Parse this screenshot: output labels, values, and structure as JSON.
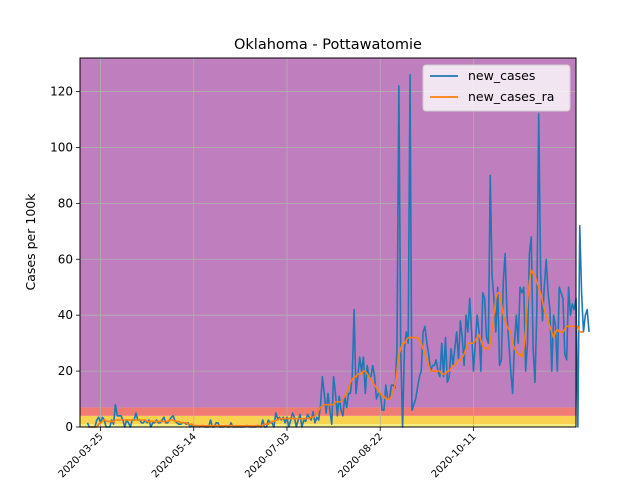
{
  "chart_data": {
    "type": "line",
    "title": "Oklahoma - Pottawatomie",
    "xlabel": "",
    "ylabel": "Cases per 100k",
    "x_start": "2020-03-18",
    "x_end": "2020-11-29",
    "xlim": [
      "2020-03-14",
      "2020-12-05"
    ],
    "ylim": [
      0,
      132
    ],
    "yticks": [
      0,
      20,
      40,
      60,
      80,
      100,
      120
    ],
    "xticks": [
      "2020-03-25",
      "2020-05-14",
      "2020-07-03",
      "2020-08-22",
      "2020-10-11"
    ],
    "grid": true,
    "legend": {
      "placement": "top-right",
      "entries": [
        "new_cases",
        "new_cases_ra"
      ]
    },
    "bands": [
      {
        "from": 0,
        "to": 1,
        "color": "#f5f07f"
      },
      {
        "from": 1,
        "to": 4,
        "color": "#f9d24f"
      },
      {
        "from": 4,
        "to": 7,
        "color": "#f07a74"
      },
      {
        "from": 7,
        "to": 132,
        "color": "#bf7fbf"
      }
    ],
    "series": [
      {
        "name": "new_cases",
        "color": "#1f77b4",
        "values": [
          1.5,
          0,
          0,
          0,
          0,
          2.5,
          3.5,
          1.5,
          3.5,
          2.5,
          0,
          0,
          0,
          2.5,
          1,
          8,
          4,
          4,
          4,
          2.5,
          0,
          2.5,
          1.5,
          0,
          2.5,
          2.5,
          5,
          2.5,
          2.5,
          1.5,
          1.5,
          2.5,
          1.5,
          2.5,
          0,
          1.5,
          1.5,
          2.5,
          1.5,
          1.5,
          2.5,
          3.5,
          1.5,
          1.5,
          2.5,
          3.5,
          4,
          2,
          1.5,
          1,
          1,
          1.5,
          1.5,
          1,
          1.5,
          0,
          0.5,
          0.5,
          0.5,
          0.5,
          0,
          0.5,
          0.5,
          0,
          0,
          0,
          2.5,
          0,
          0,
          1.5,
          1.5,
          0,
          0,
          0,
          0.5,
          0,
          0,
          1.5,
          0,
          0,
          0,
          0,
          0,
          0,
          0,
          0.5,
          0.5,
          0,
          0,
          0,
          0,
          0.5,
          0.5,
          0,
          2.5,
          0,
          0,
          2.5,
          1.5,
          1.5,
          0,
          5,
          3,
          3.5,
          2.5,
          3.5,
          1.5,
          3.5,
          0,
          2.5,
          5,
          3.5,
          0,
          2.5,
          4.5,
          0,
          2.5,
          2,
          4.5,
          3.5,
          2.5,
          5.5,
          1.5,
          3.5,
          2.5,
          8,
          18,
          12,
          5,
          12,
          6,
          1,
          18,
          12,
          4,
          11,
          6,
          4,
          11,
          7,
          12,
          12,
          18,
          42,
          12,
          18,
          25,
          20,
          25,
          12,
          22,
          18,
          18,
          22,
          18,
          10,
          12,
          12,
          6,
          6,
          15,
          10,
          10,
          15,
          15,
          14,
          28,
          122,
          28,
          0,
          28,
          34,
          30,
          126,
          6,
          8,
          10,
          14,
          18,
          20,
          34,
          36,
          30,
          26,
          20,
          22,
          22,
          24,
          20,
          18,
          30,
          18,
          32,
          16,
          18,
          28,
          22,
          28,
          34,
          24,
          38,
          32,
          22,
          40,
          34,
          46,
          34,
          20,
          30,
          40,
          34,
          20,
          48,
          46,
          32,
          30,
          90,
          54,
          46,
          34,
          50,
          22,
          24,
          52,
          62,
          40,
          30,
          20,
          12,
          30,
          40,
          30,
          50,
          48,
          50,
          20,
          30,
          62,
          68,
          28,
          16,
          42,
          112,
          56,
          38,
          50,
          60,
          48,
          42,
          20,
          40,
          36,
          20,
          50,
          48,
          46,
          26,
          24,
          50,
          40,
          44,
          42,
          46,
          0,
          72,
          48,
          34,
          40,
          42,
          34
        ]
      },
      {
        "name": "new_cases_ra",
        "color": "#ff7f0e",
        "values": [
          0,
          0,
          0,
          0,
          0,
          0,
          1,
          1.5,
          2,
          2.5,
          2,
          2,
          2,
          2,
          2,
          2.5,
          2.5,
          2.5,
          2.5,
          2.5,
          2.5,
          2.5,
          2.5,
          2.5,
          2.5,
          2.5,
          2.5,
          2.5,
          2.5,
          2.5,
          2.5,
          2.5,
          2,
          2,
          2,
          2,
          2,
          2,
          2,
          2,
          2,
          2,
          2,
          2,
          2.5,
          2.5,
          2.5,
          2,
          2,
          2,
          1.5,
          1.5,
          1.5,
          1.5,
          1,
          1,
          1,
          0.5,
          0.5,
          0.5,
          0.5,
          0.5,
          0.5,
          0.5,
          0.5,
          0.5,
          0.5,
          0.5,
          0.5,
          0.5,
          0.5,
          0.5,
          0.5,
          0.5,
          0.5,
          0.5,
          0.5,
          0.5,
          0.5,
          0.5,
          0.5,
          0.5,
          0.5,
          0.5,
          0.5,
          0.5,
          0.5,
          0.5,
          0.5,
          0.5,
          0.5,
          0.5,
          0.5,
          0.5,
          0.5,
          1,
          1,
          1,
          1.5,
          2,
          2,
          2.5,
          2.5,
          3,
          3,
          3,
          3,
          3,
          3,
          3,
          3,
          3,
          3,
          3,
          3,
          3,
          3,
          3,
          3,
          3,
          3.5,
          3.5,
          4,
          5,
          6,
          7,
          7.5,
          8,
          8,
          8,
          8,
          8,
          8,
          9,
          9,
          9,
          9,
          10,
          11,
          12,
          14,
          16,
          17,
          18,
          18,
          19,
          19,
          19,
          20,
          20,
          19,
          18,
          17,
          16,
          15,
          14,
          13,
          12,
          11,
          11,
          10,
          10,
          10,
          11,
          13,
          15,
          20,
          26,
          28,
          30,
          30,
          31,
          32,
          32,
          32,
          32,
          32,
          32,
          31,
          30,
          28,
          26,
          24,
          22,
          20,
          20,
          20,
          20,
          20,
          20,
          19,
          19,
          19,
          20,
          20,
          21,
          22,
          22,
          23,
          24,
          24,
          25,
          26,
          28,
          30,
          30,
          30,
          30,
          31,
          32,
          33,
          31,
          29,
          28,
          28,
          28,
          30,
          35,
          40,
          46,
          48,
          48,
          44,
          40,
          38,
          36,
          35,
          34,
          30,
          28,
          27,
          26,
          26,
          25,
          28,
          35,
          45,
          52,
          56,
          55,
          54,
          52,
          50,
          48,
          45,
          42,
          40,
          38,
          36,
          34,
          32,
          34,
          35,
          34,
          34,
          34,
          35,
          36,
          36,
          36,
          36,
          36,
          36,
          36,
          34,
          34,
          34
        ]
      }
    ]
  }
}
